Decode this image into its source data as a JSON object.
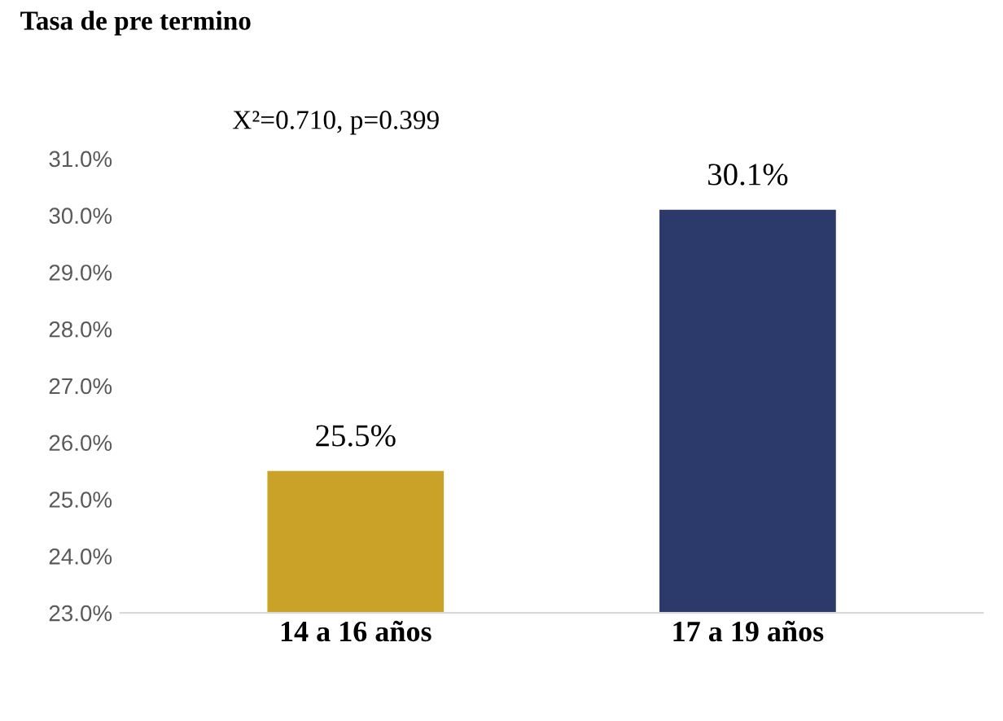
{
  "chart_data": {
    "type": "bar",
    "ylabel": "Tasa de pre termino",
    "categories": [
      "14 a 16 años",
      "17 a 19 años"
    ],
    "values": [
      25.5,
      30.1
    ],
    "colors": [
      "#c9a227",
      "#2b3a6b"
    ],
    "value_labels": [
      "25.5%",
      "30.1%"
    ],
    "ylim": [
      23,
      31
    ],
    "yticks": [
      {
        "value": 23,
        "label": "23.0%"
      },
      {
        "value": 24,
        "label": "24.0%"
      },
      {
        "value": 25,
        "label": "25.0%"
      },
      {
        "value": 26,
        "label": "26.0%"
      },
      {
        "value": 27,
        "label": "27.0%"
      },
      {
        "value": 28,
        "label": "28.0%"
      },
      {
        "value": 29,
        "label": "29.0%"
      },
      {
        "value": 30,
        "label": "30.0%"
      },
      {
        "value": 31,
        "label": "31.0%"
      }
    ],
    "annotations": [
      "X²=0.710, p=0.399"
    ],
    "grid": false,
    "legend": false
  }
}
